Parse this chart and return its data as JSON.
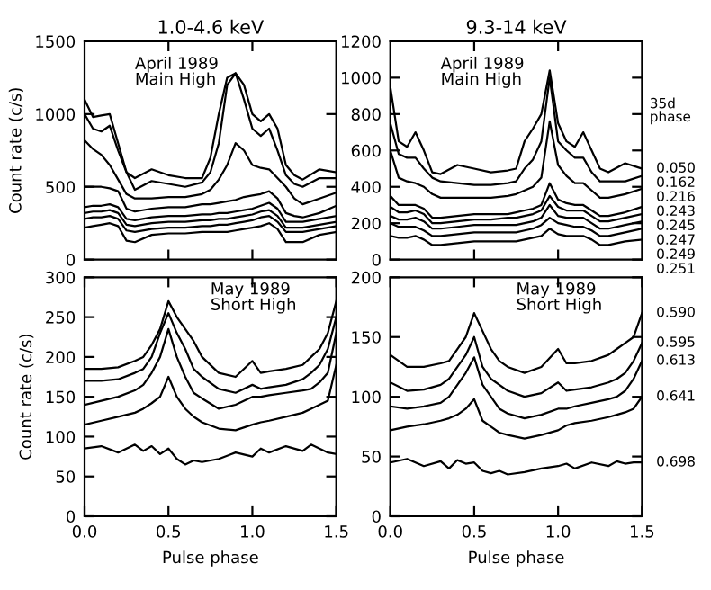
{
  "chart_data": [
    {
      "type": "line",
      "title": "1.0-4.6 keV",
      "ylabel": "Count rate (c/s)",
      "annotations": [
        "April 1989\nMain High"
      ],
      "tick_labels": "y",
      "grid": false,
      "xlim": [
        0,
        1.5
      ],
      "xticks": [
        {
          "value": 0.5,
          "label": null
        },
        {
          "value": 1,
          "label": null
        }
      ],
      "ylim": [
        0,
        1500
      ],
      "yticks": [
        0,
        500,
        1000,
        1500
      ],
      "x": [
        0,
        0.05,
        0.1,
        0.15,
        0.2,
        0.25,
        0.3,
        0.4,
        0.5,
        0.6,
        0.7,
        0.75,
        0.8,
        0.85,
        0.9,
        0.95,
        1.0,
        1.05,
        1.1,
        1.15,
        1.2,
        1.25,
        1.3,
        1.4,
        1.5
      ],
      "series": [
        {
          "color": "#000000",
          "values": [
            1100,
            980,
            990,
            1000,
            800,
            600,
            560,
            620,
            580,
            560,
            560,
            700,
            1000,
            1250,
            1280,
            1200,
            1000,
            950,
            1000,
            900,
            650,
            580,
            550,
            620,
            600
          ]
        },
        {
          "color": "#000000",
          "values": [
            1000,
            900,
            880,
            920,
            750,
            600,
            480,
            540,
            520,
            500,
            530,
            600,
            800,
            1200,
            1280,
            1100,
            900,
            850,
            900,
            750,
            580,
            520,
            500,
            560,
            560
          ]
        },
        {
          "color": "#000000",
          "values": [
            820,
            760,
            720,
            650,
            550,
            450,
            420,
            420,
            430,
            430,
            450,
            480,
            550,
            650,
            800,
            750,
            650,
            630,
            620,
            560,
            500,
            420,
            380,
            420,
            460
          ]
        },
        {
          "color": "#000000",
          "values": [
            500,
            500,
            500,
            490,
            470,
            350,
            330,
            350,
            360,
            360,
            380,
            380,
            390,
            400,
            410,
            430,
            440,
            450,
            470,
            420,
            320,
            300,
            290,
            320,
            370
          ]
        },
        {
          "color": "#000000",
          "values": [
            360,
            370,
            370,
            380,
            360,
            280,
            270,
            290,
            300,
            300,
            310,
            310,
            320,
            320,
            330,
            340,
            350,
            370,
            390,
            350,
            260,
            260,
            260,
            280,
            300
          ]
        },
        {
          "color": "#000000",
          "values": [
            320,
            330,
            330,
            340,
            320,
            240,
            230,
            250,
            260,
            260,
            270,
            270,
            280,
            280,
            290,
            300,
            310,
            330,
            340,
            300,
            220,
            220,
            220,
            240,
            260
          ]
        },
        {
          "color": "#000000",
          "values": [
            280,
            290,
            290,
            300,
            280,
            200,
            190,
            210,
            220,
            220,
            230,
            230,
            240,
            240,
            250,
            260,
            270,
            290,
            300,
            260,
            190,
            190,
            190,
            210,
            230
          ]
        },
        {
          "color": "#000000",
          "values": [
            220,
            230,
            240,
            250,
            230,
            130,
            120,
            170,
            180,
            180,
            190,
            190,
            190,
            190,
            200,
            210,
            220,
            230,
            250,
            210,
            120,
            120,
            120,
            170,
            190
          ]
        }
      ]
    },
    {
      "type": "line",
      "title": "9.3-14 keV",
      "annotations": [
        "April 1989\nMain High",
        "35d\nphase"
      ],
      "tick_labels": "y",
      "grid": false,
      "legend": "right",
      "xlim": [
        0,
        1.5
      ],
      "xticks": [
        {
          "value": 0.5,
          "label": null
        },
        {
          "value": 1,
          "label": null
        }
      ],
      "ylim": [
        0,
        1200
      ],
      "yticks": [
        0,
        200,
        400,
        600,
        800,
        1000,
        1200
      ],
      "x": [
        0,
        0.05,
        0.1,
        0.15,
        0.2,
        0.25,
        0.3,
        0.4,
        0.5,
        0.6,
        0.7,
        0.75,
        0.8,
        0.85,
        0.9,
        0.95,
        1.0,
        1.05,
        1.1,
        1.15,
        1.2,
        1.25,
        1.3,
        1.4,
        1.5
      ],
      "series": [
        {
          "name": "0.050",
          "color": "#000000",
          "values": [
            950,
            650,
            620,
            700,
            600,
            480,
            470,
            520,
            500,
            480,
            490,
            500,
            650,
            720,
            800,
            1040,
            750,
            650,
            620,
            700,
            600,
            500,
            480,
            530,
            500
          ]
        },
        {
          "name": "0.162",
          "color": "#000000",
          "values": [
            750,
            580,
            560,
            560,
            500,
            450,
            430,
            420,
            410,
            410,
            420,
            430,
            500,
            550,
            650,
            1000,
            650,
            600,
            560,
            560,
            480,
            430,
            430,
            430,
            460
          ]
        },
        {
          "name": "0.216",
          "color": "#000000",
          "values": [
            600,
            450,
            430,
            420,
            400,
            360,
            340,
            340,
            340,
            340,
            350,
            360,
            380,
            400,
            450,
            760,
            520,
            460,
            420,
            420,
            380,
            340,
            340,
            360,
            390
          ]
        },
        {
          "name": "0.243",
          "color": "#000000",
          "values": [
            350,
            300,
            300,
            300,
            280,
            230,
            230,
            240,
            250,
            250,
            250,
            260,
            270,
            280,
            300,
            420,
            330,
            310,
            300,
            300,
            270,
            240,
            240,
            260,
            290
          ]
        },
        {
          "name": "0.245",
          "color": "#000000",
          "values": [
            290,
            260,
            260,
            270,
            250,
            200,
            200,
            210,
            220,
            220,
            230,
            230,
            240,
            250,
            270,
            350,
            290,
            270,
            270,
            270,
            240,
            210,
            210,
            230,
            250
          ]
        },
        {
          "name": "0.247",
          "color": "#000000",
          "values": [
            240,
            220,
            220,
            230,
            210,
            170,
            170,
            180,
            190,
            190,
            190,
            190,
            200,
            210,
            230,
            300,
            240,
            230,
            230,
            230,
            200,
            170,
            170,
            190,
            210
          ]
        },
        {
          "name": "0.249",
          "color": "#000000",
          "values": [
            200,
            180,
            180,
            180,
            160,
            130,
            130,
            140,
            150,
            150,
            150,
            150,
            160,
            170,
            190,
            230,
            200,
            190,
            180,
            180,
            160,
            130,
            130,
            150,
            170
          ]
        },
        {
          "name": "0.251",
          "color": "#000000",
          "values": [
            130,
            120,
            120,
            130,
            110,
            80,
            80,
            90,
            100,
            100,
            100,
            100,
            110,
            120,
            130,
            170,
            140,
            130,
            130,
            130,
            110,
            80,
            80,
            100,
            110
          ]
        }
      ]
    },
    {
      "type": "line",
      "xlabel": "Pulse phase",
      "ylabel": "Count rate (c/s)",
      "annotations": [
        "May 1989\nShort High"
      ],
      "grid": false,
      "xlim": [
        0,
        1.5
      ],
      "xticks": [
        {
          "value": 0,
          "label": "0.0"
        },
        {
          "value": 0.5,
          "label": "0.5"
        },
        {
          "value": 1,
          "label": "1.0"
        },
        {
          "value": 1.5,
          "label": "1.5"
        }
      ],
      "ylim": [
        0,
        300
      ],
      "yticks": [
        0,
        50,
        100,
        150,
        200,
        250,
        300
      ],
      "x": [
        0,
        0.1,
        0.2,
        0.3,
        0.35,
        0.4,
        0.45,
        0.5,
        0.55,
        0.6,
        0.65,
        0.7,
        0.8,
        0.9,
        1.0,
        1.05,
        1.1,
        1.2,
        1.3,
        1.35,
        1.4,
        1.45,
        1.5
      ],
      "series": [
        {
          "color": "#000000",
          "values": [
            185,
            185,
            187,
            195,
            200,
            215,
            235,
            270,
            250,
            235,
            220,
            200,
            180,
            175,
            195,
            180,
            182,
            185,
            190,
            200,
            210,
            230,
            270
          ]
        },
        {
          "color": "#000000",
          "values": [
            170,
            170,
            172,
            180,
            185,
            200,
            230,
            255,
            230,
            210,
            185,
            175,
            160,
            155,
            165,
            160,
            162,
            165,
            172,
            180,
            190,
            210,
            250
          ]
        },
        {
          "color": "#000000",
          "values": [
            140,
            145,
            150,
            158,
            165,
            180,
            200,
            235,
            200,
            175,
            155,
            148,
            135,
            140,
            150,
            150,
            152,
            155,
            158,
            160,
            168,
            180,
            230
          ]
        },
        {
          "color": "#000000",
          "values": [
            115,
            120,
            125,
            130,
            135,
            142,
            150,
            175,
            150,
            135,
            125,
            118,
            110,
            108,
            115,
            118,
            120,
            125,
            130,
            135,
            140,
            145,
            190
          ]
        },
        {
          "color": "#000000",
          "values": [
            85,
            88,
            80,
            90,
            82,
            88,
            78,
            85,
            72,
            65,
            70,
            68,
            72,
            80,
            75,
            85,
            80,
            88,
            82,
            90,
            85,
            80,
            78
          ]
        }
      ]
    },
    {
      "type": "line",
      "xlabel": "Pulse phase",
      "annotations": [
        "May 1989\nShort High"
      ],
      "grid": false,
      "legend": "right",
      "xlim": [
        0,
        1.5
      ],
      "xticks": [
        {
          "value": 0,
          "label": "0.0"
        },
        {
          "value": 0.5,
          "label": "0.5"
        },
        {
          "value": 1,
          "label": "1.0"
        },
        {
          "value": 1.5,
          "label": "1.5"
        }
      ],
      "ylim": [
        0,
        200
      ],
      "yticks": [
        0,
        50,
        100,
        150,
        200
      ],
      "x": [
        0,
        0.1,
        0.2,
        0.3,
        0.35,
        0.4,
        0.45,
        0.5,
        0.55,
        0.6,
        0.65,
        0.7,
        0.8,
        0.9,
        1.0,
        1.05,
        1.1,
        1.2,
        1.3,
        1.35,
        1.4,
        1.45,
        1.5
      ],
      "series": [
        {
          "name": "0.590",
          "color": "#000000",
          "values": [
            135,
            125,
            125,
            128,
            130,
            140,
            150,
            170,
            155,
            140,
            130,
            125,
            120,
            125,
            140,
            128,
            128,
            130,
            135,
            140,
            145,
            150,
            170
          ]
        },
        {
          "name": "0.595",
          "color": "#000000",
          "values": [
            112,
            105,
            106,
            110,
            115,
            125,
            135,
            150,
            125,
            115,
            110,
            105,
            100,
            103,
            112,
            105,
            106,
            108,
            112,
            115,
            120,
            130,
            145
          ]
        },
        {
          "name": "0.613",
          "color": "#000000",
          "values": [
            92,
            90,
            92,
            95,
            100,
            110,
            120,
            133,
            110,
            100,
            90,
            86,
            82,
            85,
            90,
            90,
            92,
            95,
            98,
            100,
            105,
            115,
            130
          ]
        },
        {
          "name": "0.641",
          "color": "#000000",
          "values": [
            72,
            75,
            77,
            80,
            82,
            85,
            90,
            98,
            80,
            75,
            70,
            68,
            65,
            68,
            72,
            76,
            78,
            80,
            83,
            85,
            87,
            90,
            100
          ]
        },
        {
          "name": "0.698",
          "color": "#000000",
          "values": [
            45,
            48,
            42,
            46,
            40,
            47,
            44,
            45,
            38,
            36,
            38,
            35,
            37,
            40,
            42,
            44,
            40,
            45,
            42,
            46,
            44,
            45,
            45
          ]
        }
      ]
    }
  ]
}
